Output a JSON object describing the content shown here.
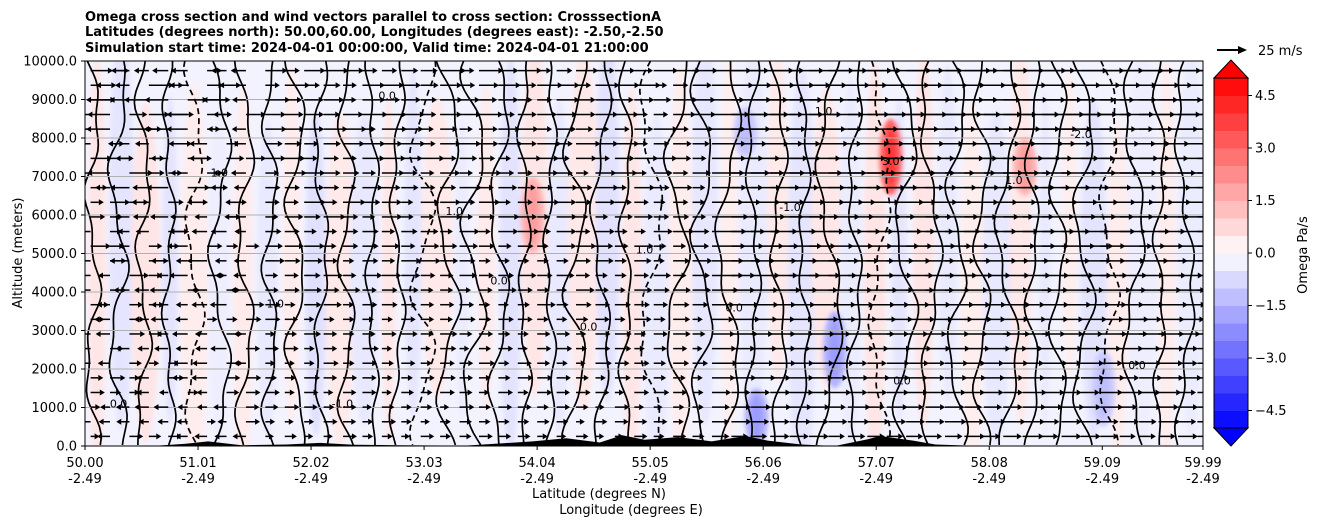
{
  "chart_data": {
    "type": "contourf",
    "title_lines": [
      "Omega cross section and wind vectors parallel to cross section: CrosssectionA",
      "Latitudes (degrees north): 50.00,60.00, Longitudes (degrees east): -2.50,-2.50",
      "Simulation start time: 2024-04-01 00:00:00, Valid time: 2024-04-01 21:00:00"
    ],
    "ylabel": "Altitude (meters)",
    "xlabel_lines": [
      "Latitude (degrees N)",
      "Longitude (degrees E)"
    ],
    "ylim": [
      0,
      10000
    ],
    "y_ticks": [
      "0.0",
      "1000.0",
      "2000.0",
      "3000.0",
      "4000.0",
      "5000.0",
      "6000.0",
      "7000.0",
      "8000.0",
      "9000.0",
      "10000.0"
    ],
    "y_tick_values": [
      0,
      1000,
      2000,
      3000,
      4000,
      5000,
      6000,
      7000,
      8000,
      9000,
      10000
    ],
    "x_ticks": [
      {
        "lat": "50.00",
        "lon": "-2.49"
      },
      {
        "lat": "51.01",
        "lon": "-2.49"
      },
      {
        "lat": "52.02",
        "lon": "-2.49"
      },
      {
        "lat": "53.03",
        "lon": "-2.49"
      },
      {
        "lat": "54.04",
        "lon": "-2.49"
      },
      {
        "lat": "55.05",
        "lon": "-2.49"
      },
      {
        "lat": "56.06",
        "lon": "-2.49"
      },
      {
        "lat": "57.07",
        "lon": "-2.49"
      },
      {
        "lat": "58.08",
        "lon": "-2.49"
      },
      {
        "lat": "59.09",
        "lon": "-2.49"
      },
      {
        "lat": "59.99",
        "lon": "-2.49"
      }
    ],
    "grid": "horizontal",
    "colorbar": {
      "label": "Omega Pa/s",
      "range": [
        -5.0,
        5.0
      ],
      "ticks": [
        "4.5",
        "3.0",
        "1.5",
        "0.0",
        "−1.5",
        "−3.0",
        "−4.5"
      ],
      "tick_values": [
        4.5,
        3.0,
        1.5,
        0.0,
        -1.5,
        -3.0,
        -4.5
      ],
      "levels": [
        -5.0,
        -4.5,
        -4.0,
        -3.5,
        -3.0,
        -2.5,
        -2.0,
        -1.5,
        -1.0,
        -0.5,
        0.0,
        0.5,
        1.0,
        1.5,
        2.0,
        2.5,
        3.0,
        3.5,
        4.0,
        4.5,
        5.0
      ],
      "cmap": "bwr",
      "extend": "both"
    },
    "contour_labels_visible": [
      "0.0",
      "-1.0",
      "1.0",
      "3.0",
      "-2.0"
    ],
    "quiver_key": {
      "label": "25 m/s",
      "value": 25
    },
    "features": [
      {
        "name": "positive omega core near 57.2N",
        "x_lat": 57.2,
        "y_range": [
          6500,
          8500
        ],
        "value": 3.0
      },
      {
        "name": "positive omega near 54.0N",
        "x_lat": 54.0,
        "y_range": [
          5000,
          7000
        ],
        "value": 1.5
      },
      {
        "name": "positive omega near 58.5N",
        "x_lat": 58.4,
        "y_range": [
          6500,
          8000
        ],
        "value": 1.5
      },
      {
        "name": "negative omega near 56.0N low levels",
        "x_lat": 56.0,
        "y_range": [
          0,
          1500
        ],
        "value": -1.5
      },
      {
        "name": "negative omega near 56.7N",
        "x_lat": 56.7,
        "y_range": [
          1500,
          3500
        ],
        "value": -1.5
      },
      {
        "name": "negative omega near 59.0N",
        "x_lat": 59.1,
        "y_range": [
          500,
          2500
        ],
        "value": -1.0
      },
      {
        "name": "negative omega near 55.9N upper",
        "x_lat": 55.9,
        "y_range": [
          7500,
          8800
        ],
        "value": -1.0
      }
    ]
  },
  "colors": {
    "bwr_neg_strong": "#0000ff",
    "bwr_pos_strong": "#ff0000",
    "terrain": "#000000",
    "grid": "#b0b0b0"
  }
}
